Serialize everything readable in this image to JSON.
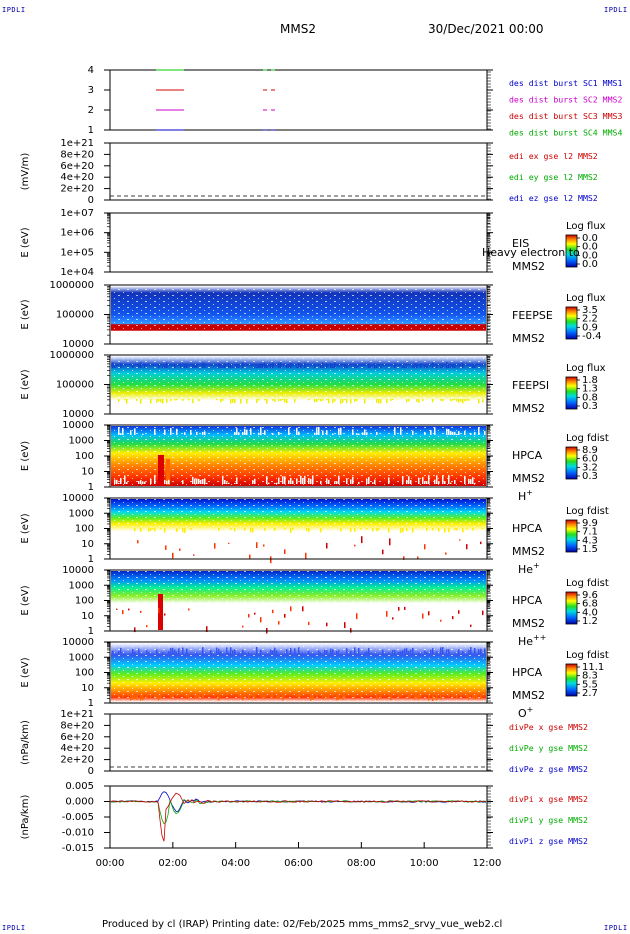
{
  "corner_mark": "IPDLI",
  "header": {
    "spacecraft": "MMS2",
    "date": "30/Dec/2021 00:00"
  },
  "footer": {
    "text": "Produced by cl (IRAP)    Printing date: 02/Feb/2025    mms_mms2_srvy_vue_web2.cl"
  },
  "chart_data": [
    {
      "id": "p1",
      "type": "line",
      "ticks": [
        "4",
        "3",
        "2",
        "1"
      ],
      "legend": [
        {
          "text": "des dist burst SC1 MMS1",
          "color": "#0000cc"
        },
        {
          "text": "des dist burst SC2 MMS2",
          "color": "#cc00cc"
        },
        {
          "text": "des dist burst SC3 MMS3",
          "color": "#cc0000"
        },
        {
          "text": "des dist burst SC4 MMS4",
          "color": "#00aa00"
        }
      ],
      "series": [
        {
          "y": 4,
          "color": "#00cc00"
        },
        {
          "y": 3,
          "color": "#dd0000"
        },
        {
          "y": 2,
          "color": "#cc00cc"
        },
        {
          "y": 1,
          "color": "#0000cc"
        }
      ]
    },
    {
      "id": "p2",
      "type": "line",
      "ylabel": "(mV/m)",
      "ticks": [
        "1e+21",
        "8e+20",
        "6e+20",
        "4e+20",
        "2e+20",
        "0"
      ],
      "legend": [
        {
          "text": "edi ex gse l2 MMS2",
          "color": "#cc0000"
        },
        {
          "text": "edi ey gse l2 MMS2",
          "color": "#00aa00"
        },
        {
          "text": "edi ez gse l2 MMS2",
          "color": "#0000cc"
        }
      ]
    },
    {
      "id": "p3",
      "type": "heatmap",
      "ylabel": "E (eV)",
      "ticks": [
        "1e+07",
        "1e+06",
        "1e+05",
        "1e+04"
      ],
      "instrument": [
        "EIS",
        "MMS2"
      ],
      "overlay": "Heavy electron to",
      "cbar_title": "Log flux",
      "cbar_ticks": [
        "0.0",
        "0.0",
        "0.0",
        "0.0"
      ]
    },
    {
      "id": "p4",
      "type": "heatmap",
      "ylabel": "E (eV)",
      "ticks": [
        "1000000",
        "100000",
        "10000"
      ],
      "instrument": [
        "FEEPSE",
        "MMS2"
      ],
      "cbar_title": "Log flux",
      "cbar_ticks": [
        "3.5",
        "2.2",
        "0.9",
        "-0.4"
      ]
    },
    {
      "id": "p5",
      "type": "heatmap",
      "ylabel": "E (eV)",
      "ticks": [
        "1000000",
        "100000",
        "10000"
      ],
      "instrument": [
        "FEEPSI",
        "MMS2"
      ],
      "cbar_title": "Log flux",
      "cbar_ticks": [
        "1.8",
        "1.3",
        "0.8",
        "0.3"
      ]
    },
    {
      "id": "p6",
      "type": "heatmap",
      "ylabel": "E (eV)",
      "ticks": [
        "10000",
        "1000",
        "100",
        "10",
        "1"
      ],
      "instrument": [
        "HPCA",
        "MMS2"
      ],
      "species": "H",
      "charge": "+",
      "cbar_title": "Log fdist",
      "cbar_ticks": [
        "8.9",
        "6.0",
        "3.2",
        "0.3"
      ]
    },
    {
      "id": "p7",
      "type": "heatmap",
      "ylabel": "E (eV)",
      "ticks": [
        "10000",
        "1000",
        "100",
        "10",
        "1"
      ],
      "instrument": [
        "HPCA",
        "MMS2"
      ],
      "species": "He",
      "charge": "+",
      "cbar_title": "Log fdist",
      "cbar_ticks": [
        "9.9",
        "7.1",
        "4.3",
        "1.5"
      ]
    },
    {
      "id": "p8",
      "type": "heatmap",
      "ylabel": "E (eV)",
      "ticks": [
        "10000",
        "1000",
        "100",
        "10",
        "1"
      ],
      "instrument": [
        "HPCA",
        "MMS2"
      ],
      "species": "He",
      "charge": "++",
      "cbar_title": "Log fdist",
      "cbar_ticks": [
        "9.6",
        "6.8",
        "4.0",
        "1.2"
      ]
    },
    {
      "id": "p9",
      "type": "heatmap",
      "ylabel": "E (eV)",
      "ticks": [
        "10000",
        "1000",
        "100",
        "10",
        "1"
      ],
      "instrument": [
        "HPCA",
        "MMS2"
      ],
      "species": "O",
      "charge": "+",
      "cbar_title": "Log fdist",
      "cbar_ticks": [
        "11.1",
        "8.3",
        "5.5",
        "2.7"
      ]
    },
    {
      "id": "p10",
      "type": "line",
      "ylabel": "(nPa/km)",
      "ticks": [
        "1e+21",
        "8e+20",
        "6e+20",
        "4e+20",
        "2e+20",
        "0"
      ],
      "legend": [
        {
          "text": "divPe x gse MMS2",
          "color": "#cc0000"
        },
        {
          "text": "divPe y gse MMS2",
          "color": "#00aa00"
        },
        {
          "text": "divPe z gse MMS2",
          "color": "#0000cc"
        }
      ]
    },
    {
      "id": "p11",
      "type": "line",
      "ylabel": "(nPa/km)",
      "ticks": [
        "0.005",
        "0.000",
        "-0.005",
        "-0.010",
        "-0.015"
      ],
      "legend": [
        {
          "text": "divPi x gse MMS2",
          "color": "#cc0000"
        },
        {
          "text": "divPi y gse MMS2",
          "color": "#00aa00"
        },
        {
          "text": "divPi z gse MMS2",
          "color": "#0000cc"
        }
      ]
    }
  ],
  "xaxis": {
    "ticks": [
      "00:00",
      "02:00",
      "04:00",
      "06:00",
      "08:00",
      "10:00",
      "12:00"
    ]
  }
}
